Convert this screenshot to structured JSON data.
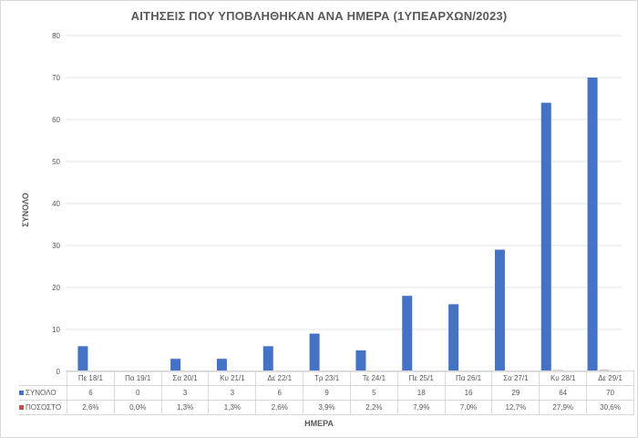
{
  "chart_data": {
    "type": "bar",
    "title": "ΑΙΤΗΣΕΙΣ ΠΟΥ ΥΠΟΒΛΗΘΗΚΑΝ ΑΝΑ ΗΜΕΡΑ (1ΥΠΕΑΡΧΩΝ/2023)",
    "xlabel": "ΗΜΕΡΑ",
    "ylabel": "ΣΥΝΟΛΟ",
    "ylim": [
      0,
      80
    ],
    "yticks": [
      0,
      10,
      20,
      30,
      40,
      50,
      60,
      70,
      80
    ],
    "grid": true,
    "legend": "data-table",
    "categories": [
      "Πε 18/1",
      "Πα 19/1",
      "Σα 20/1",
      "Κυ 21/1",
      "Δε 22/1",
      "Τρ 23/1",
      "Τε 24/1",
      "Πε 25/1",
      "Πα 26/1",
      "Σα 27/1",
      "Κυ 28/1",
      "Δε 29/1"
    ],
    "series": [
      {
        "name": "ΣΥΝΟΛΟ",
        "color": "#4472c4",
        "values": [
          6,
          0,
          3,
          3,
          6,
          9,
          5,
          18,
          16,
          29,
          64,
          70
        ],
        "labels": [
          "6",
          "0",
          "3",
          "3",
          "6",
          "9",
          "5",
          "18",
          "16",
          "29",
          "64",
          "70"
        ]
      },
      {
        "name": "ΠΟΣΟΣΤΟ",
        "color": "#c0504d",
        "values": [
          0.026,
          0.0,
          0.013,
          0.013,
          0.026,
          0.039,
          0.022,
          0.079,
          0.07,
          0.127,
          0.279,
          0.306
        ],
        "labels": [
          "2,6%",
          "0,0%",
          "1,3%",
          "1,3%",
          "2,6%",
          "3,9%",
          "2,2%",
          "7,9%",
          "7,0%",
          "12,7%",
          "27,9%",
          "30,6%"
        ]
      }
    ]
  }
}
